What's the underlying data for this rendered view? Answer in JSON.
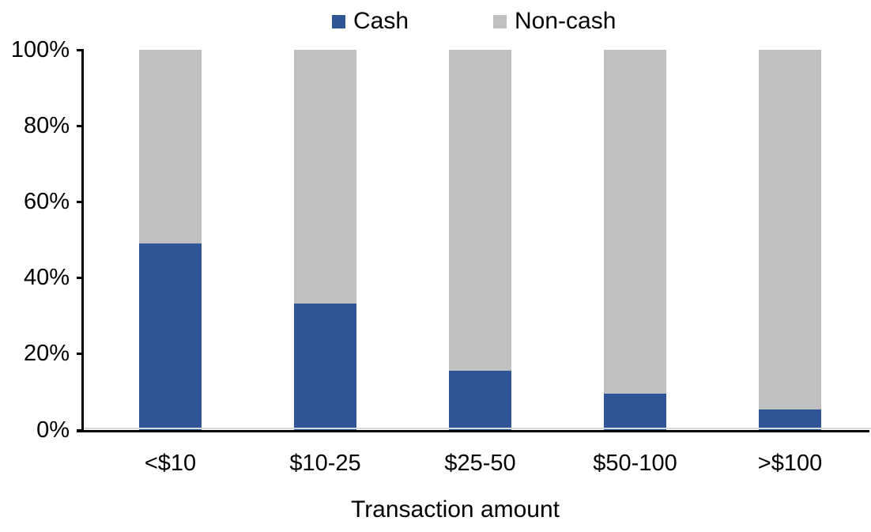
{
  "chart_data": {
    "type": "bar",
    "stacked": true,
    "percent": true,
    "title": "",
    "xlabel": "Transaction amount",
    "ylabel": "",
    "categories": [
      "<$10",
      "$10-25",
      "$25-50",
      "$50-100",
      ">$100"
    ],
    "series": [
      {
        "name": "Cash",
        "color": "#2f5596",
        "values": [
          49.0,
          33.3,
          15.6,
          9.6,
          5.5
        ]
      },
      {
        "name": "Non-cash",
        "color": "#c0c0c0",
        "values": [
          51.0,
          66.7,
          84.4,
          90.4,
          94.5
        ]
      }
    ],
    "ylim": [
      0,
      100
    ],
    "yticks": [
      {
        "label": "0%",
        "value": 0
      },
      {
        "label": "20%",
        "value": 20
      },
      {
        "label": "40%",
        "value": 40
      },
      {
        "label": "60%",
        "value": 60
      },
      {
        "label": "80%",
        "value": 80
      },
      {
        "label": "100%",
        "value": 100
      }
    ],
    "legend_position": "top",
    "grid": false,
    "colors": {
      "axis": "#000000",
      "text": "#000000",
      "background": "#ffffff",
      "zero_line": "#d9d9d9"
    }
  }
}
